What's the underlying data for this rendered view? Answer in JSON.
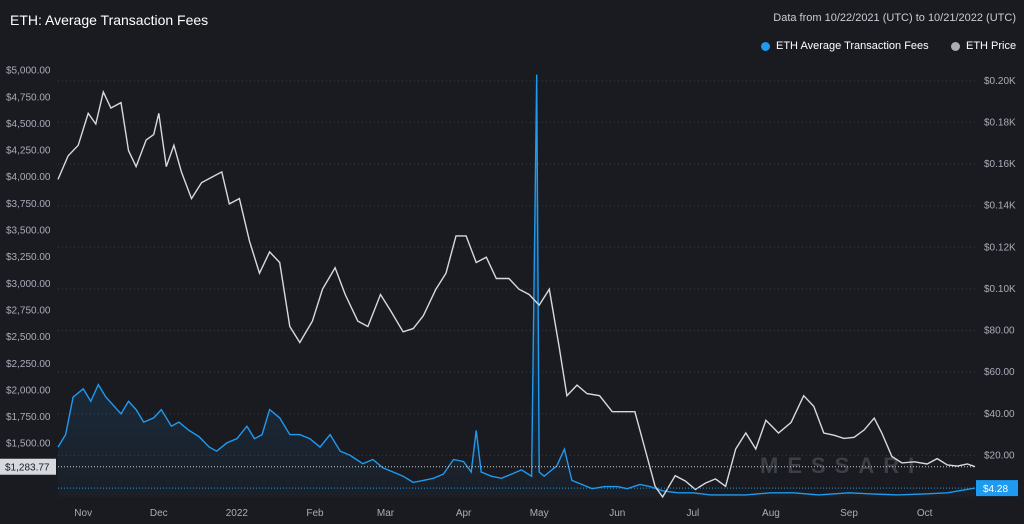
{
  "header": {
    "title": "ETH: Average Transaction Fees",
    "date_range": "Data from 10/22/2021 (UTC) to 10/21/2022 (UTC)"
  },
  "legend": {
    "fees_label": "ETH Average Transaction Fees",
    "price_label": "ETH Price"
  },
  "watermark": "MESSARI",
  "colors": {
    "background": "#1a1b21",
    "fees": "#1e9af0",
    "price": "#d6d9e0",
    "grid": "#3a3d46"
  },
  "badges": {
    "left": "$1,283.77",
    "right": "$4.28"
  },
  "chart_data": {
    "type": "line",
    "title": "ETH: Average Transaction Fees",
    "x_tick_labels": [
      "Nov",
      "Dec",
      "2022",
      "Feb",
      "Mar",
      "Apr",
      "May",
      "Jun",
      "Jul",
      "Aug",
      "Sep",
      "Oct"
    ],
    "left_axis": {
      "ticks": [
        "$1,500.00",
        "$1,750.00",
        "$2,000.00",
        "$2,250.00",
        "$2,500.00",
        "$2,750.00",
        "$3,000.00",
        "$3,250.00",
        "$3,500.00",
        "$3,750.00",
        "$4,000.00",
        "$4,250.00",
        "$4,500.00",
        "$4,750.00",
        "$5,000.00"
      ],
      "ylim": [
        1000,
        5100
      ]
    },
    "right_axis": {
      "ticks": [
        "$20.00",
        "$40.00",
        "$60.00",
        "$80.00",
        "$0.10K",
        "$0.12K",
        "$0.14K",
        "$0.16K",
        "$0.18K",
        "$0.20K"
      ],
      "ylim": [
        0,
        210
      ]
    },
    "grid": true,
    "legend_position": "top-right",
    "series": [
      {
        "name": "ETH Price",
        "axis": "left",
        "color": "#d6d9e0",
        "points": [
          [
            "2021-10-22",
            3980
          ],
          [
            "2021-10-26",
            4200
          ],
          [
            "2021-10-30",
            4300
          ],
          [
            "2021-11-03",
            4600
          ],
          [
            "2021-11-06",
            4500
          ],
          [
            "2021-11-09",
            4800
          ],
          [
            "2021-11-12",
            4650
          ],
          [
            "2021-11-16",
            4700
          ],
          [
            "2021-11-19",
            4250
          ],
          [
            "2021-11-22",
            4100
          ],
          [
            "2021-11-26",
            4350
          ],
          [
            "2021-11-29",
            4400
          ],
          [
            "2021-12-01",
            4600
          ],
          [
            "2021-12-04",
            4100
          ],
          [
            "2021-12-07",
            4300
          ],
          [
            "2021-12-10",
            4050
          ],
          [
            "2021-12-14",
            3800
          ],
          [
            "2021-12-18",
            3950
          ],
          [
            "2021-12-22",
            4000
          ],
          [
            "2021-12-26",
            4050
          ],
          [
            "2021-12-29",
            3750
          ],
          [
            "2022-01-02",
            3800
          ],
          [
            "2022-01-06",
            3400
          ],
          [
            "2022-01-10",
            3100
          ],
          [
            "2022-01-14",
            3300
          ],
          [
            "2022-01-18",
            3200
          ],
          [
            "2022-01-22",
            2600
          ],
          [
            "2022-01-26",
            2450
          ],
          [
            "2022-01-31",
            2650
          ],
          [
            "2022-02-04",
            2950
          ],
          [
            "2022-02-09",
            3150
          ],
          [
            "2022-02-13",
            2900
          ],
          [
            "2022-02-18",
            2650
          ],
          [
            "2022-02-22",
            2600
          ],
          [
            "2022-02-27",
            2900
          ],
          [
            "2022-03-03",
            2750
          ],
          [
            "2022-03-08",
            2550
          ],
          [
            "2022-03-12",
            2580
          ],
          [
            "2022-03-16",
            2700
          ],
          [
            "2022-03-21",
            2950
          ],
          [
            "2022-03-25",
            3100
          ],
          [
            "2022-03-29",
            3450
          ],
          [
            "2022-04-02",
            3450
          ],
          [
            "2022-04-06",
            3200
          ],
          [
            "2022-04-10",
            3250
          ],
          [
            "2022-04-14",
            3050
          ],
          [
            "2022-04-19",
            3050
          ],
          [
            "2022-04-23",
            2950
          ],
          [
            "2022-04-27",
            2900
          ],
          [
            "2022-05-01",
            2800
          ],
          [
            "2022-05-05",
            2950
          ],
          [
            "2022-05-09",
            2400
          ],
          [
            "2022-05-12",
            1950
          ],
          [
            "2022-05-16",
            2050
          ],
          [
            "2022-05-20",
            1970
          ],
          [
            "2022-05-25",
            1950
          ],
          [
            "2022-05-30",
            1800
          ],
          [
            "2022-06-03",
            1800
          ],
          [
            "2022-06-08",
            1800
          ],
          [
            "2022-06-12",
            1450
          ],
          [
            "2022-06-16",
            1100
          ],
          [
            "2022-06-19",
            1000
          ],
          [
            "2022-06-24",
            1200
          ],
          [
            "2022-06-28",
            1150
          ],
          [
            "2022-07-02",
            1070
          ],
          [
            "2022-07-06",
            1130
          ],
          [
            "2022-07-10",
            1170
          ],
          [
            "2022-07-14",
            1100
          ],
          [
            "2022-07-18",
            1450
          ],
          [
            "2022-07-22",
            1600
          ],
          [
            "2022-07-26",
            1450
          ],
          [
            "2022-07-30",
            1720
          ],
          [
            "2022-08-04",
            1600
          ],
          [
            "2022-08-09",
            1700
          ],
          [
            "2022-08-14",
            1950
          ],
          [
            "2022-08-18",
            1850
          ],
          [
            "2022-08-22",
            1600
          ],
          [
            "2022-08-26",
            1580
          ],
          [
            "2022-08-30",
            1550
          ],
          [
            "2022-09-03",
            1560
          ],
          [
            "2022-09-07",
            1630
          ],
          [
            "2022-09-11",
            1740
          ],
          [
            "2022-09-14",
            1600
          ],
          [
            "2022-09-18",
            1380
          ],
          [
            "2022-09-22",
            1320
          ],
          [
            "2022-09-27",
            1330
          ],
          [
            "2022-10-02",
            1310
          ],
          [
            "2022-10-06",
            1360
          ],
          [
            "2022-10-10",
            1300
          ],
          [
            "2022-10-14",
            1290
          ],
          [
            "2022-10-18",
            1310
          ],
          [
            "2022-10-21",
            1284
          ]
        ]
      },
      {
        "name": "ETH Average Transaction Fees",
        "axis": "right",
        "color": "#1e9af0",
        "points": [
          [
            "2021-10-22",
            24
          ],
          [
            "2021-10-25",
            30
          ],
          [
            "2021-10-28",
            48
          ],
          [
            "2021-11-01",
            52
          ],
          [
            "2021-11-04",
            46
          ],
          [
            "2021-11-07",
            54
          ],
          [
            "2021-11-10",
            48
          ],
          [
            "2021-11-13",
            44
          ],
          [
            "2021-11-16",
            40
          ],
          [
            "2021-11-19",
            46
          ],
          [
            "2021-11-22",
            42
          ],
          [
            "2021-11-25",
            36
          ],
          [
            "2021-11-29",
            38
          ],
          [
            "2021-12-02",
            42
          ],
          [
            "2021-12-06",
            34
          ],
          [
            "2021-12-09",
            36
          ],
          [
            "2021-12-13",
            32
          ],
          [
            "2021-12-17",
            29
          ],
          [
            "2021-12-21",
            24
          ],
          [
            "2021-12-24",
            22
          ],
          [
            "2021-12-28",
            26
          ],
          [
            "2022-01-01",
            28
          ],
          [
            "2022-01-05",
            34
          ],
          [
            "2022-01-08",
            28
          ],
          [
            "2022-01-11",
            30
          ],
          [
            "2022-01-14",
            42
          ],
          [
            "2022-01-18",
            38
          ],
          [
            "2022-01-22",
            30
          ],
          [
            "2022-01-26",
            30
          ],
          [
            "2022-01-30",
            28
          ],
          [
            "2022-02-03",
            24
          ],
          [
            "2022-02-07",
            30
          ],
          [
            "2022-02-11",
            22
          ],
          [
            "2022-02-15",
            20
          ],
          [
            "2022-02-20",
            16
          ],
          [
            "2022-02-24",
            18
          ],
          [
            "2022-02-28",
            14
          ],
          [
            "2022-03-04",
            12
          ],
          [
            "2022-03-08",
            10
          ],
          [
            "2022-03-12",
            7
          ],
          [
            "2022-03-16",
            8
          ],
          [
            "2022-03-20",
            9
          ],
          [
            "2022-03-24",
            11
          ],
          [
            "2022-03-28",
            18
          ],
          [
            "2022-04-01",
            17
          ],
          [
            "2022-04-04",
            12
          ],
          [
            "2022-04-06",
            32
          ],
          [
            "2022-04-08",
            12
          ],
          [
            "2022-04-12",
            10
          ],
          [
            "2022-04-16",
            9
          ],
          [
            "2022-04-20",
            11
          ],
          [
            "2022-04-24",
            13
          ],
          [
            "2022-04-28",
            10
          ],
          [
            "2022-04-30",
            203
          ],
          [
            "2022-05-01",
            12
          ],
          [
            "2022-05-03",
            10
          ],
          [
            "2022-05-05",
            12
          ],
          [
            "2022-05-08",
            15
          ],
          [
            "2022-05-11",
            23
          ],
          [
            "2022-05-14",
            8
          ],
          [
            "2022-05-18",
            6
          ],
          [
            "2022-05-22",
            4
          ],
          [
            "2022-05-27",
            5
          ],
          [
            "2022-06-01",
            5
          ],
          [
            "2022-06-05",
            4
          ],
          [
            "2022-06-10",
            6
          ],
          [
            "2022-06-14",
            5
          ],
          [
            "2022-06-19",
            3
          ],
          [
            "2022-06-25",
            2
          ],
          [
            "2022-07-01",
            2
          ],
          [
            "2022-07-08",
            1
          ],
          [
            "2022-07-15",
            1
          ],
          [
            "2022-07-22",
            1
          ],
          [
            "2022-08-01",
            2
          ],
          [
            "2022-08-10",
            2
          ],
          [
            "2022-08-20",
            1
          ],
          [
            "2022-09-01",
            2
          ],
          [
            "2022-09-10",
            1.5
          ],
          [
            "2022-09-20",
            1
          ],
          [
            "2022-10-01",
            1.5
          ],
          [
            "2022-10-10",
            2
          ],
          [
            "2022-10-21",
            4.28
          ]
        ]
      }
    ]
  }
}
